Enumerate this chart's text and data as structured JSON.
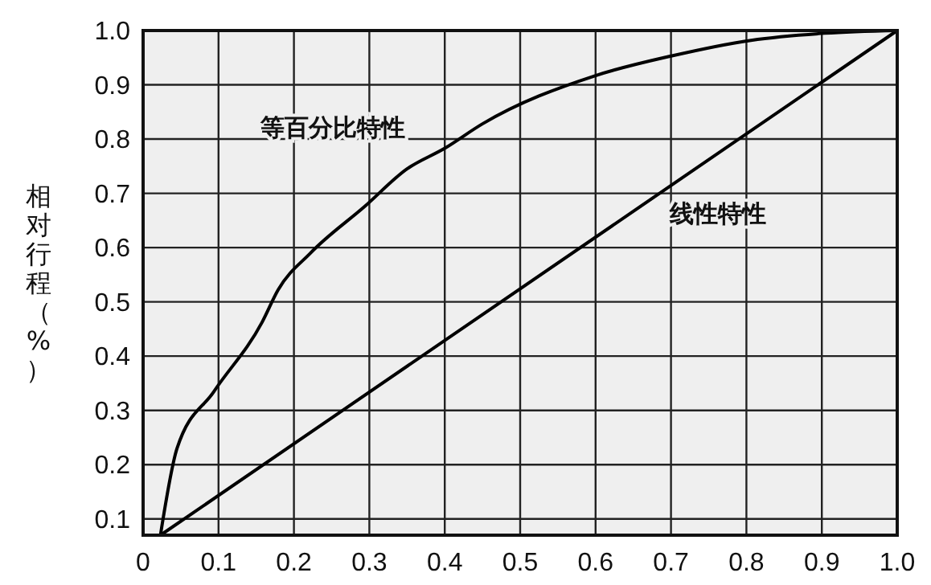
{
  "chart_data": {
    "type": "line",
    "ylabel": "相对行程（%）",
    "xlim": [
      0,
      1.0
    ],
    "ylim": [
      0.07,
      1.0
    ],
    "xticks": [
      0,
      {
        "value": 0.1,
        "label": "0.1"
      },
      {
        "value": 0.2,
        "label": "0.2"
      },
      {
        "value": 0.3,
        "label": "0.3"
      },
      {
        "value": 0.4,
        "label": "0.4"
      },
      {
        "value": 0.5,
        "label": "0.5"
      },
      {
        "value": 0.6,
        "label": "0.6"
      },
      {
        "value": 0.7,
        "label": "0.7"
      },
      {
        "value": 0.8,
        "label": "0.8"
      },
      {
        "value": 0.9,
        "label": "0.9"
      },
      {
        "value": 1.0,
        "label": "1.0"
      }
    ],
    "yticks": [
      {
        "value": 0.1,
        "label": "0.1"
      },
      {
        "value": 0.2,
        "label": "0.2"
      },
      {
        "value": 0.3,
        "label": "0.3"
      },
      {
        "value": 0.4,
        "label": "0.4"
      },
      {
        "value": 0.5,
        "label": "0.5"
      },
      {
        "value": 0.6,
        "label": "0.6"
      },
      {
        "value": 0.7,
        "label": "0.7"
      },
      {
        "value": 0.8,
        "label": "0.8"
      },
      {
        "value": 0.9,
        "label": "0.9"
      },
      {
        "value": 1.0,
        "label": "1.0"
      }
    ],
    "grid": true,
    "marker": "none",
    "line_style": "solid",
    "series": [
      {
        "name": "等百分比特性",
        "color": "#000000",
        "x": [
          0.023,
          0.045,
          0.094,
          0.158,
          0.179,
          0.222,
          0.294,
          0.35,
          0.4,
          0.45,
          0.6,
          0.7,
          0.806,
          0.904,
          1.0
        ],
        "values": [
          0.07,
          0.23,
          0.335,
          0.463,
          0.522,
          0.59,
          0.676,
          0.745,
          0.783,
          0.828,
          0.917,
          0.953,
          0.982,
          0.995,
          1.0
        ]
      },
      {
        "name": "线性特性",
        "color": "#000000",
        "x": [
          0.023,
          1.0
        ],
        "values": [
          0.07,
          1.0
        ]
      }
    ]
  }
}
